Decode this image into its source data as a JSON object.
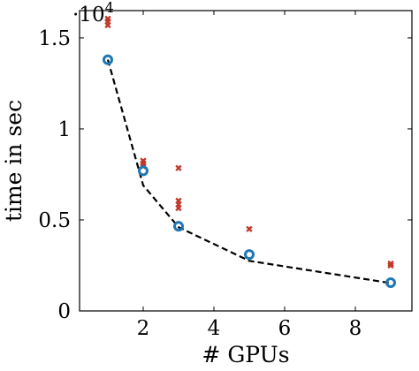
{
  "chart_data": {
    "type": "scatter",
    "title": "",
    "xlabel": "# GPUs",
    "ylabel": "time in sec",
    "y_multiplier_label": "·10",
    "y_multiplier_exp": "4",
    "xlim": [
      0.2,
      9.6
    ],
    "ylim": [
      0,
      16500
    ],
    "x_ticks": [
      2,
      4,
      6,
      8
    ],
    "x_tick_labels": [
      "2",
      "4",
      "6",
      "8"
    ],
    "y_ticks": [
      0,
      5000,
      10000,
      15000
    ],
    "y_tick_labels": [
      "0",
      "0.5",
      "1",
      "1.5"
    ],
    "grid": false,
    "legend": "none",
    "series": [
      {
        "kind": "scatter",
        "marker": "cross",
        "color": "#c0392b",
        "points": [
          [
            1,
            15700
          ],
          [
            1,
            15900
          ],
          [
            1,
            16050
          ],
          [
            2,
            7950
          ],
          [
            2,
            8100
          ],
          [
            2,
            8250
          ],
          [
            3,
            5650
          ],
          [
            3,
            5850
          ],
          [
            3,
            6050
          ],
          [
            3,
            7850
          ],
          [
            5,
            4500
          ],
          [
            9,
            2500
          ],
          [
            9,
            2600
          ]
        ]
      },
      {
        "kind": "scatter",
        "marker": "circle",
        "color": "#1f77b4",
        "points": [
          [
            1,
            13800
          ],
          [
            2,
            7700
          ],
          [
            3,
            4650
          ],
          [
            5,
            3100
          ],
          [
            9,
            1550
          ]
        ]
      },
      {
        "kind": "line",
        "style": "dashed",
        "color": "#000000",
        "points": [
          [
            1,
            13800
          ],
          [
            2,
            6900
          ],
          [
            3,
            4600
          ],
          [
            5,
            2750
          ],
          [
            9,
            1530
          ]
        ]
      }
    ]
  }
}
